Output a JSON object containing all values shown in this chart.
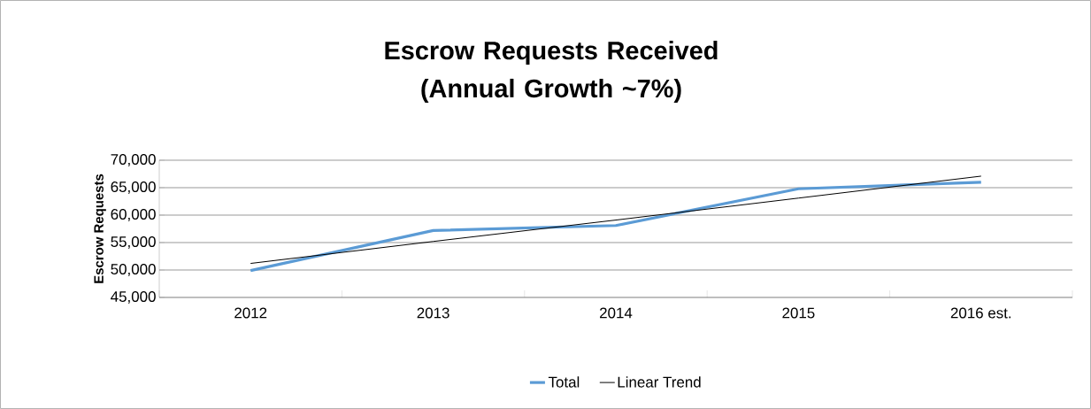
{
  "chart_data": {
    "type": "line",
    "title": "Escrow Requests Received\n(Annual Growth ~7%)",
    "ylabel": "Escrow Requests",
    "categories": [
      "2012",
      "2013",
      "2014",
      "2015",
      "2016 est."
    ],
    "series": [
      {
        "name": "Total",
        "color": "#5b9bd5",
        "values": [
          49900,
          57200,
          58100,
          64800,
          66000
        ]
      },
      {
        "name": "Linear Trend",
        "color": "#000000",
        "values": [
          51200,
          55200,
          59100,
          63100,
          67100
        ]
      }
    ],
    "ylim": [
      45000,
      70000
    ],
    "yticks": [
      {
        "value": 45000,
        "label": "45,000"
      },
      {
        "value": 50000,
        "label": "50,000"
      },
      {
        "value": 55000,
        "label": "55,000"
      },
      {
        "value": 60000,
        "label": "60,000"
      },
      {
        "value": 65000,
        "label": "65,000"
      },
      {
        "value": 70000,
        "label": "70,000"
      }
    ],
    "grid": "y",
    "legend": "bottom",
    "marker": "none"
  }
}
